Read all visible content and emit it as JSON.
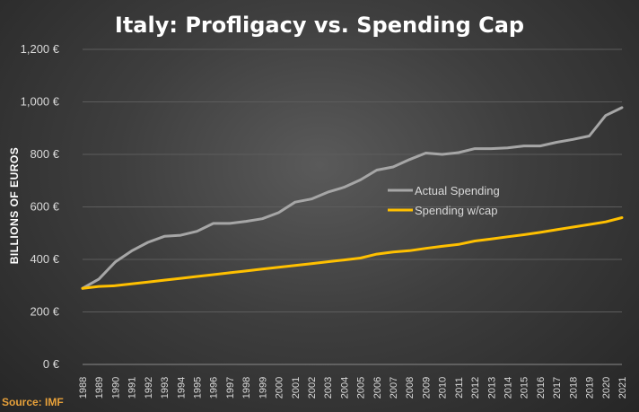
{
  "chart_data": {
    "type": "line",
    "title": "Italy: Profligacy vs. Spending Cap",
    "ylabel": "BILLIONS OF EUROS",
    "xlabel": "",
    "ylim": [
      0,
      1200
    ],
    "yticks": [
      "0 €",
      "200 €",
      "400 €",
      "600 €",
      "800 €",
      "1,000 €",
      "1,200 €"
    ],
    "x": [
      "1988",
      "1989",
      "1990",
      "1991",
      "1992",
      "1993",
      "1994",
      "1995",
      "1996",
      "1997",
      "1998",
      "1999",
      "2000",
      "2001",
      "2002",
      "2003",
      "2004",
      "2005",
      "2006",
      "2007",
      "2008",
      "2009",
      "2010",
      "2011",
      "2012",
      "2013",
      "2014",
      "2015",
      "2016",
      "2017",
      "2018",
      "2019",
      "2020",
      "2021"
    ],
    "series": [
      {
        "name": "Actual Spending",
        "color": "#a6a6a6",
        "values": [
          290,
          325,
          390,
          432,
          465,
          488,
          492,
          507,
          537,
          537,
          545,
          555,
          578,
          618,
          630,
          656,
          675,
          703,
          740,
          752,
          780,
          805,
          800,
          807,
          822,
          822,
          825,
          832,
          832,
          846,
          857,
          870,
          948,
          978
        ]
      },
      {
        "name": "Spending w/cap",
        "color": "#ffc000",
        "values": [
          290,
          297,
          300,
          307,
          314,
          321,
          328,
          335,
          342,
          349,
          356,
          363,
          370,
          377,
          384,
          391,
          398,
          405,
          420,
          428,
          433,
          442,
          450,
          457,
          470,
          478,
          486,
          494,
          503,
          513,
          523,
          533,
          543,
          559
        ]
      }
    ],
    "legend_position": "center-right",
    "grid": "horizontal",
    "source": "Source: IMF"
  }
}
